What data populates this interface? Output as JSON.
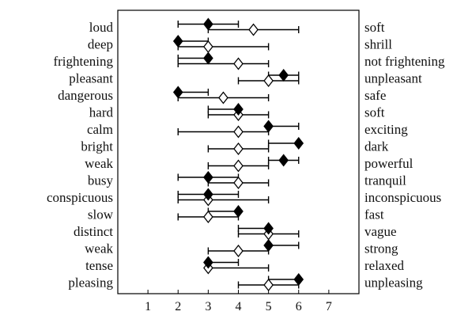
{
  "chart_data": {
    "type": "semantic-differential",
    "xlim": [
      0,
      8
    ],
    "x_ticks": [
      "1",
      "2",
      "3",
      "4",
      "5",
      "6",
      "7"
    ],
    "series": [
      {
        "marker": "filled-diamond"
      },
      {
        "marker": "open-diamond"
      }
    ],
    "items": [
      {
        "left": "loud",
        "right": "soft",
        "filled": {
          "mean": 3.0,
          "min": 2.0,
          "max": 4.0
        },
        "open": {
          "mean": 4.5,
          "min": 3.0,
          "max": 6.0
        }
      },
      {
        "left": "deep",
        "right": "shrill",
        "filled": {
          "mean": 2.0,
          "min": 2.0,
          "max": 3.0
        },
        "open": {
          "mean": 3.0,
          "min": 2.0,
          "max": 5.0
        }
      },
      {
        "left": "frightening",
        "right": "not frightening",
        "filled": {
          "mean": 3.0,
          "min": 2.0,
          "max": 3.0
        },
        "open": {
          "mean": 4.0,
          "min": 2.0,
          "max": 5.0
        }
      },
      {
        "left": "pleasant",
        "right": "unpleasant",
        "filled": {
          "mean": 5.5,
          "min": 5.0,
          "max": 6.0
        },
        "open": {
          "mean": 5.0,
          "min": 4.0,
          "max": 6.0
        }
      },
      {
        "left": "dangerous",
        "right": "safe",
        "filled": {
          "mean": 2.0,
          "min": 2.0,
          "max": 3.0
        },
        "open": {
          "mean": 3.5,
          "min": 2.0,
          "max": 5.0
        }
      },
      {
        "left": "hard",
        "right": "soft",
        "filled": {
          "mean": 4.0,
          "min": 3.0,
          "max": 4.0
        },
        "open": {
          "mean": 4.0,
          "min": 3.0,
          "max": 5.0
        }
      },
      {
        "left": "calm",
        "right": "exciting",
        "filled": {
          "mean": 5.0,
          "min": 5.0,
          "max": 6.0
        },
        "open": {
          "mean": 4.0,
          "min": 2.0,
          "max": 5.0
        }
      },
      {
        "left": "bright",
        "right": "dark",
        "filled": {
          "mean": 6.0,
          "min": 5.0,
          "max": 6.0
        },
        "open": {
          "mean": 4.0,
          "min": 3.0,
          "max": 5.0
        }
      },
      {
        "left": "weak",
        "right": "powerful",
        "filled": {
          "mean": 5.5,
          "min": 5.0,
          "max": 6.0
        },
        "open": {
          "mean": 4.0,
          "min": 3.0,
          "max": 5.0
        }
      },
      {
        "left": "busy",
        "right": "tranquil",
        "filled": {
          "mean": 3.0,
          "min": 2.0,
          "max": 4.0
        },
        "open": {
          "mean": 4.0,
          "min": 3.0,
          "max": 5.0
        }
      },
      {
        "left": "conspicuous",
        "right": "inconspicuous",
        "filled": {
          "mean": 3.0,
          "min": 2.0,
          "max": 4.0
        },
        "open": {
          "mean": 3.0,
          "min": 2.0,
          "max": 5.0
        }
      },
      {
        "left": "slow",
        "right": "fast",
        "filled": {
          "mean": 4.0,
          "min": 3.0,
          "max": 4.0
        },
        "open": {
          "mean": 3.0,
          "min": 2.0,
          "max": 4.0
        }
      },
      {
        "left": "distinct",
        "right": "vague",
        "filled": {
          "mean": 5.0,
          "min": 4.0,
          "max": 5.0
        },
        "open": {
          "mean": 5.0,
          "min": 4.0,
          "max": 6.0
        }
      },
      {
        "left": "weak",
        "right": "strong",
        "filled": {
          "mean": 5.0,
          "min": 5.0,
          "max": 6.0
        },
        "open": {
          "mean": 4.0,
          "min": 3.0,
          "max": 5.0
        }
      },
      {
        "left": "tense",
        "right": "relaxed",
        "filled": {
          "mean": 3.0,
          "min": 3.0,
          "max": 4.0
        },
        "open": {
          "mean": 3.0,
          "min": 3.0,
          "max": 5.0
        }
      },
      {
        "left": "pleasing",
        "right": "unpleasing",
        "filled": {
          "mean": 6.0,
          "min": 5.0,
          "max": 6.0
        },
        "open": {
          "mean": 5.0,
          "min": 4.0,
          "max": 6.0
        }
      }
    ],
    "colors": {
      "line": "#000000",
      "filled_marker": "#000000",
      "open_marker": "#ffffff"
    },
    "grid": false,
    "legend": "none"
  }
}
